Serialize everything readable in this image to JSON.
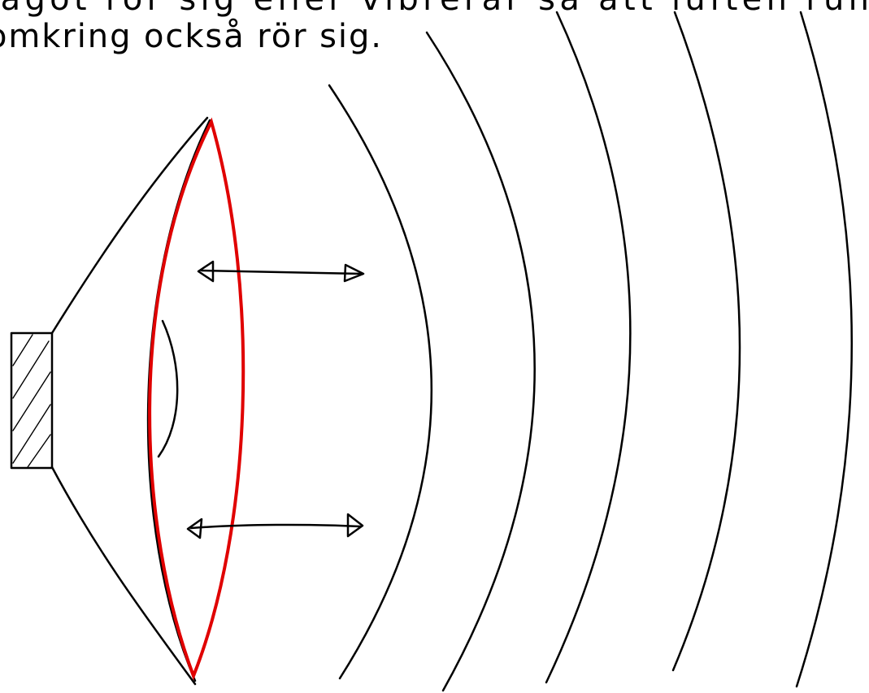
{
  "text": {
    "lines": [
      "något rör sig eller vibrerar så att luften runt",
      "omkring också rör sig."
    ]
  }
}
